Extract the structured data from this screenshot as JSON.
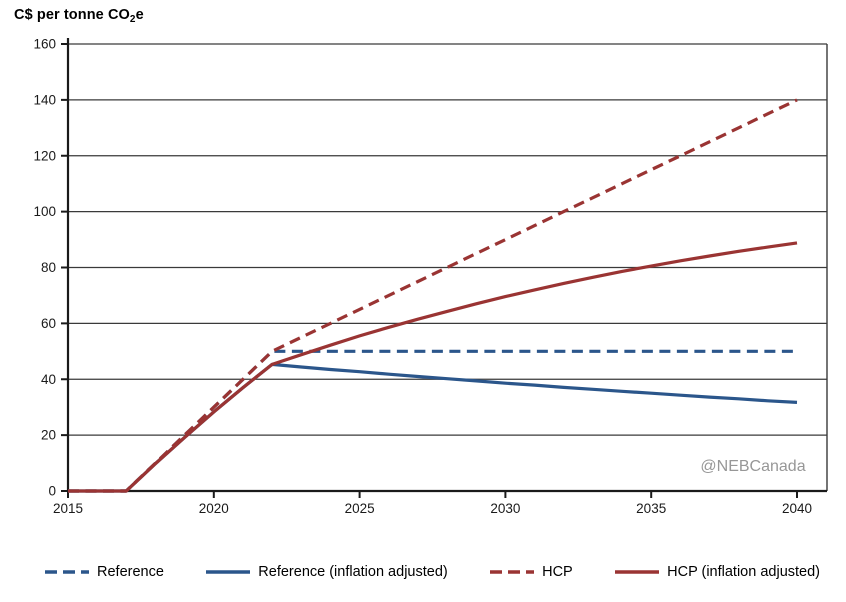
{
  "title": {
    "prefix": "C$ per tonne CO",
    "subscript": "2",
    "suffix": "e"
  },
  "chart_data": {
    "type": "line",
    "title": "C$ per tonne CO2e",
    "ylabel": "C$ per tonne CO2e",
    "xlabel": "",
    "ylim": [
      0,
      160
    ],
    "xlim": [
      2015,
      2041
    ],
    "grid": "horizontal",
    "legend_position": "bottom",
    "watermark": "@NEBCanada",
    "yticks": [
      0,
      20,
      40,
      60,
      80,
      100,
      120,
      140,
      160
    ],
    "xticks": [
      2015,
      2020,
      2025,
      2030,
      2035,
      2040
    ],
    "x": [
      2015,
      2016,
      2017,
      2018,
      2019,
      2020,
      2021,
      2022,
      2023,
      2024,
      2025,
      2026,
      2027,
      2028,
      2029,
      2030,
      2031,
      2032,
      2033,
      2034,
      2035,
      2036,
      2037,
      2038,
      2039,
      2040
    ],
    "series": [
      {
        "name": "Reference",
        "color": "#2B568B",
        "dashed": true,
        "values": [
          0,
          0,
          0,
          10,
          20,
          30,
          40,
          50,
          50,
          50,
          50,
          50,
          50,
          50,
          50,
          50,
          50,
          50,
          50,
          50,
          50,
          50,
          50,
          50,
          50,
          50
        ]
      },
      {
        "name": "Reference (inflation adjusted)",
        "color": "#2B568B",
        "dashed": false,
        "values": [
          0,
          0,
          0,
          9.8,
          19.2,
          28.3,
          37.0,
          45.3,
          44.4,
          43.5,
          42.7,
          41.8,
          41.0,
          40.2,
          39.4,
          38.6,
          37.9,
          37.1,
          36.4,
          35.7,
          35.0,
          34.3,
          33.6,
          33.0,
          32.3,
          31.7
        ]
      },
      {
        "name": "HCP",
        "color": "#9A3433",
        "dashed": true,
        "values": [
          0,
          0,
          0,
          10,
          20,
          30,
          40,
          50,
          55,
          60,
          65,
          70,
          75,
          80,
          85,
          90,
          95,
          100,
          105,
          110,
          115,
          120,
          125,
          130,
          135,
          140
        ]
      },
      {
        "name": "HCP (inflation adjusted)",
        "color": "#9A3433",
        "dashed": false,
        "values": [
          0,
          0,
          0,
          9.8,
          19.2,
          28.3,
          37.0,
          45.3,
          48.8,
          52.2,
          55.5,
          58.6,
          61.5,
          64.3,
          67.0,
          69.6,
          72.0,
          74.3,
          76.5,
          78.6,
          80.5,
          82.4,
          84.1,
          85.8,
          87.3,
          88.8
        ]
      }
    ]
  },
  "style": {
    "grid_color": "#3a3a3a",
    "axis_color": "#1a1a1a",
    "watermark_color": "#979797"
  }
}
